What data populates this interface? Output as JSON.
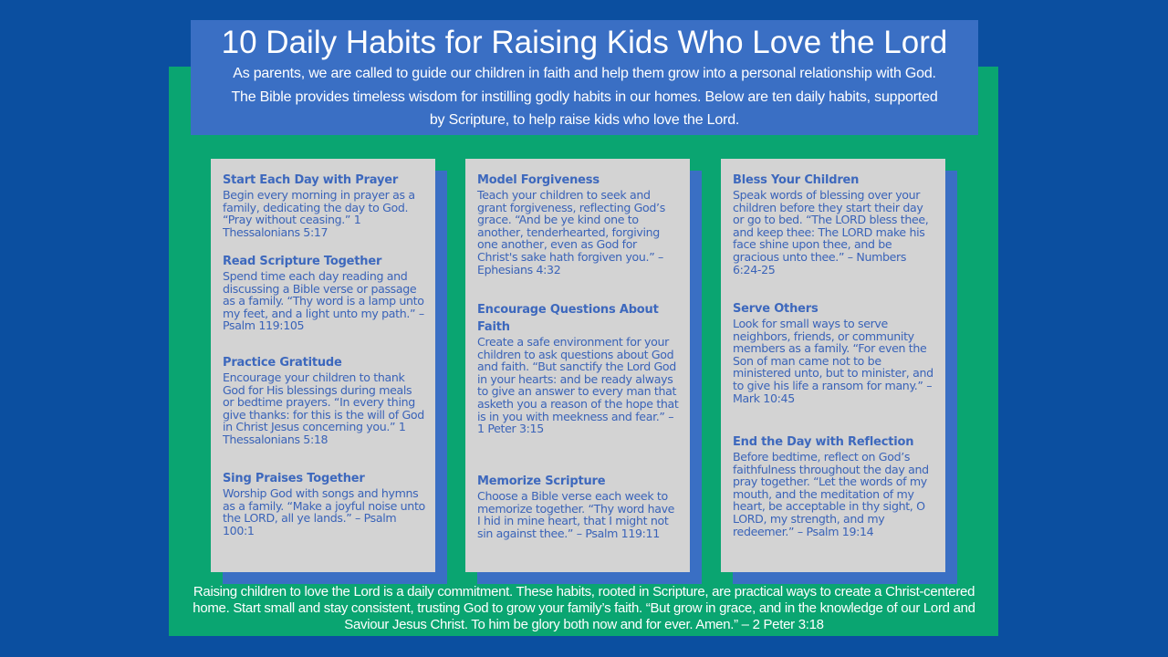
{
  "title": "10 Daily Habits for Raising Kids Who Love the Lord",
  "intro": "As parents, we are called to guide our children in faith and help them grow into a personal relationship with God. The Bible provides timeless wisdom for instilling godly habits in our homes. Below are ten daily habits, supported by Scripture, to help raise kids who love the Lord.",
  "columns": [
    [
      {
        "heading": "Start Each Day with Prayer",
        "text": "Begin every morning in prayer as a family, dedicating the day to God. “Pray without ceasing.” 1 Thessalonians 5:17"
      },
      {
        "heading": "Read Scripture Together",
        "text": "Spend time each day reading and discussing a Bible verse or passage as a family. “Thy word is a lamp unto my feet, and a light unto my path.” – Psalm 119:105"
      },
      {
        "heading": "Practice Gratitude",
        "text": "Encourage your children to thank God for His blessings during meals or bedtime prayers. “In every thing give thanks: for this is the will of God in Christ Jesus concerning you.” 1 Thessalonians 5:18"
      },
      {
        "heading": "Sing Praises Together",
        "text": "Worship God with songs and hymns as a family. “Make a joyful noise unto the LORD, all ye lands.” – Psalm 100:1"
      }
    ],
    [
      {
        "heading": "Model Forgiveness",
        "text": "Teach your children to seek and grant forgiveness, reflecting God’s grace. “And be ye kind one to another, tenderhearted, forgiving one another, even as God for Christ's sake hath forgiven you.” – Ephesians 4:32"
      },
      {
        "heading": "Encourage Questions About Faith",
        "text": "Create a safe environment for your children to ask questions about God and faith. “But sanctify the Lord God in your hearts: and be ready always to give an answer to every man that asketh you a reason of the hope that is in you with meekness and fear.” – 1 Peter 3:15"
      },
      {
        "heading": "Memorize Scripture",
        "text": "Choose a Bible verse each week to memorize together. “Thy word have I hid in mine heart, that I might not sin against thee.” – Psalm 119:11"
      }
    ],
    [
      {
        "heading": "Bless Your Children",
        "text": "Speak words of blessing over your children before they start their day or go to bed. “The LORD bless thee, and keep thee: The LORD make his face shine upon thee, and be gracious unto thee.” – Numbers 6:24-25"
      },
      {
        "heading": "Serve Others",
        "text": "Look for small ways to serve neighbors, friends, or community members as a family. “For even the Son of man came not to be ministered unto, but to minister, and to give his life a ransom for many.” – Mark 10:45"
      },
      {
        "heading": "End the Day with Reflection",
        "text": "Before bedtime, reflect on God’s faithfulness throughout the day and pray together. “Let the words of my mouth, and the meditation of my heart, be acceptable in thy sight, O LORD, my strength, and my redeemer.” – Psalm 19:14"
      }
    ]
  ],
  "footer": "Raising children to love the Lord is a daily commitment. These habits, rooted in Scripture, are practical ways to create a Christ-centered home. Start small and stay consistent, trusting God to grow your family’s faith.   “But grow in grace, and in the knowledge of our Lord and Saviour Jesus Christ. To him be glory both now and for ever. Amen.” – 2 Peter 3:18"
}
